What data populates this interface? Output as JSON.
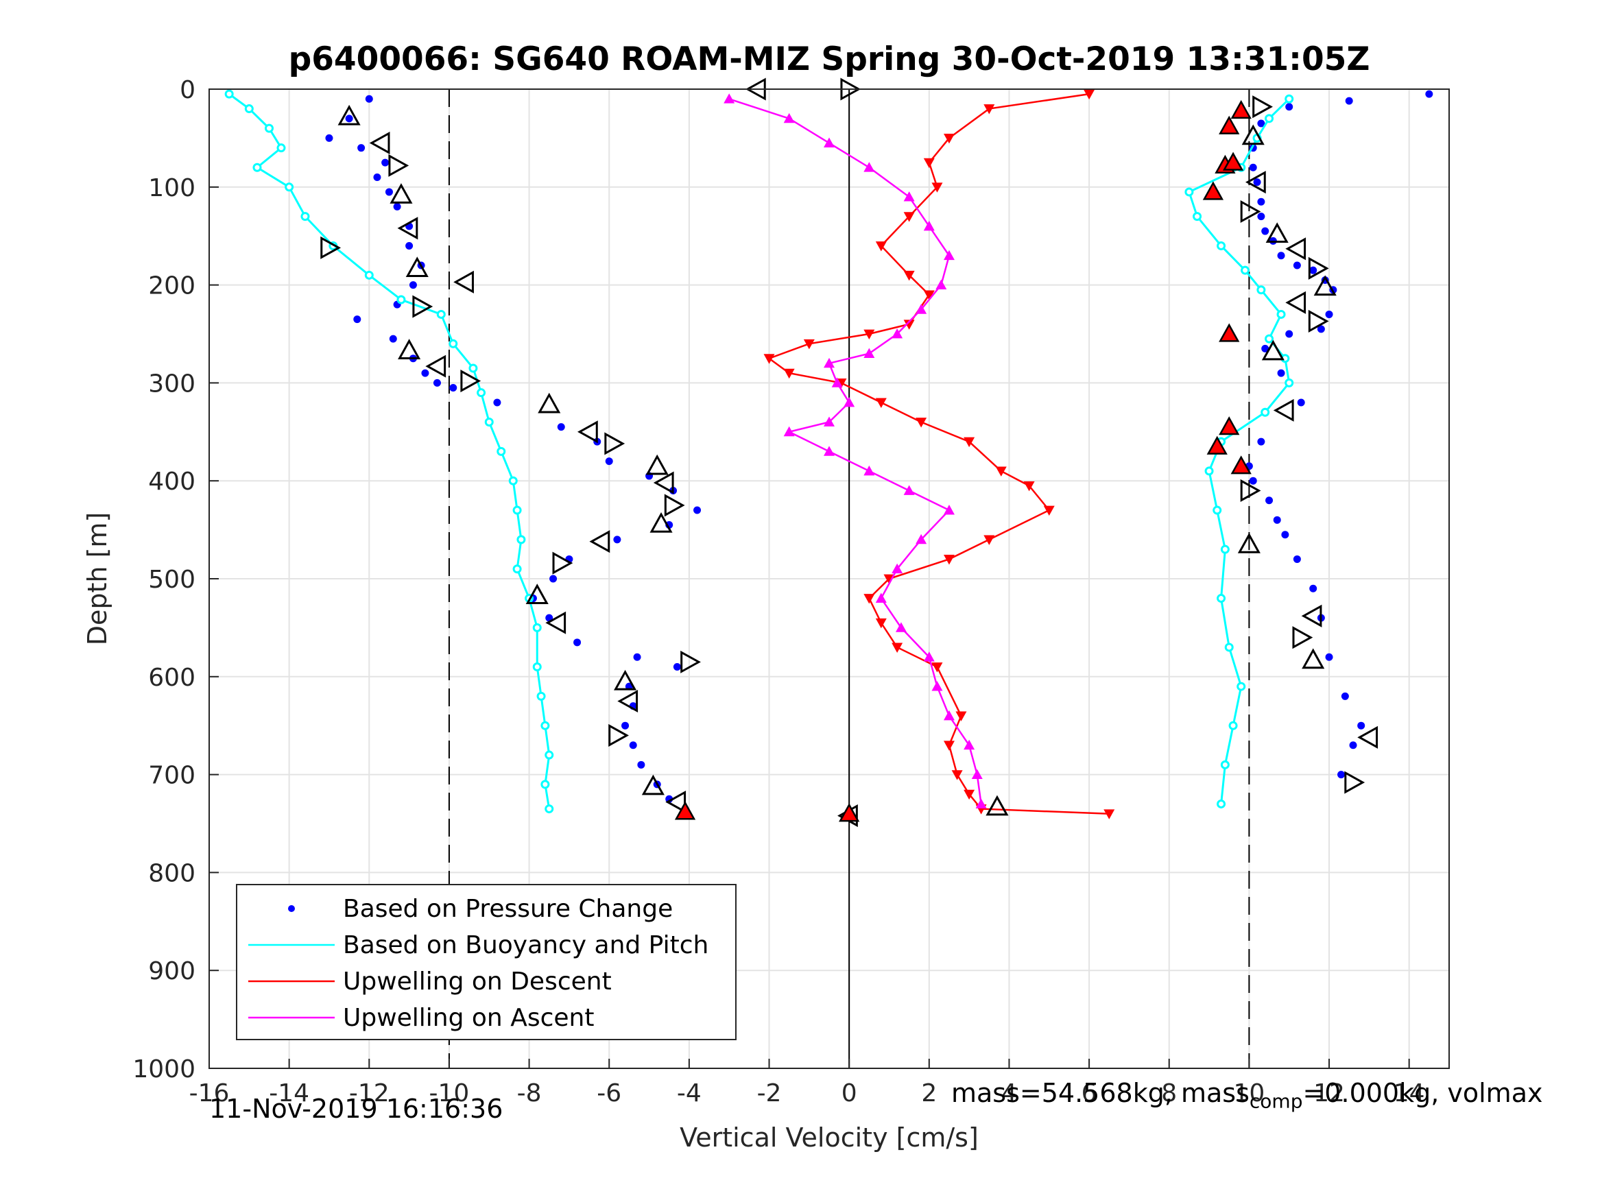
{
  "chart_data": {
    "type": "scatter",
    "title": "p6400066: SG640 ROAM-MIZ Spring 30-Oct-2019 13:31:05Z",
    "xlabel": "Vertical Velocity [cm/s]",
    "ylabel": "Depth [m]",
    "xlim": [
      -16,
      15
    ],
    "ylim": [
      0,
      1000
    ],
    "y_reversed": true,
    "grid": true,
    "x_ticks": [
      -16,
      -14,
      -12,
      -10,
      -8,
      -6,
      -4,
      -2,
      0,
      2,
      4,
      6,
      8,
      10,
      12,
      14
    ],
    "y_ticks": [
      0,
      100,
      200,
      300,
      400,
      500,
      600,
      700,
      800,
      900,
      1000
    ],
    "reference_lines": [
      -10,
      0,
      10
    ],
    "legend_position": "lower-left",
    "colors": {
      "pressure": "#0000ff",
      "buoyancy": "#00ffff",
      "descent": "#ff0000",
      "ascent": "#ff00ff",
      "markers": "#000000"
    },
    "series": [
      {
        "name": "Based on Pressure Change",
        "phase": "descent",
        "style": "dots",
        "x": [
          -12.0,
          -12.5,
          -13.0,
          -12.2,
          -11.6,
          -11.8,
          -11.5,
          -11.3,
          -11.0,
          -11.0,
          -10.7,
          -10.9,
          -11.3,
          -12.3,
          -11.4,
          -10.9,
          -10.6,
          -10.3,
          -9.9,
          -8.8,
          -7.2,
          -6.3,
          -6.0,
          -5.0,
          -4.4,
          -3.8,
          -4.5,
          -5.8,
          -7.0,
          -7.4,
          -7.9,
          -7.5,
          -6.8,
          -5.3,
          -4.3,
          -5.5,
          -5.4,
          -5.6,
          -5.4,
          -5.2,
          -4.8,
          -4.5,
          -4.1,
          0.0
        ],
        "y": [
          10,
          30,
          50,
          60,
          75,
          90,
          105,
          120,
          140,
          160,
          180,
          200,
          220,
          235,
          255,
          275,
          290,
          300,
          305,
          320,
          345,
          360,
          380,
          395,
          410,
          430,
          445,
          460,
          480,
          500,
          520,
          540,
          565,
          580,
          590,
          610,
          630,
          650,
          670,
          690,
          710,
          725,
          735,
          740
        ]
      },
      {
        "name": "Based on Pressure Change",
        "phase": "ascent",
        "style": "dots",
        "x": [
          14.5,
          12.5,
          11.0,
          10.3,
          10.1,
          10.1,
          10.2,
          10.3,
          10.3,
          10.4,
          10.6,
          10.8,
          11.2,
          11.6,
          11.9,
          12.1,
          12.0,
          11.8,
          11.0,
          10.4,
          10.8,
          11.3,
          10.3,
          10.0,
          10.1,
          10.5,
          10.7,
          10.9,
          11.2,
          11.6,
          11.8,
          12.0,
          12.4,
          12.8,
          12.6,
          12.3
        ],
        "y": [
          5,
          12,
          18,
          35,
          60,
          80,
          95,
          115,
          130,
          145,
          155,
          170,
          180,
          185,
          195,
          205,
          230,
          245,
          250,
          265,
          290,
          320,
          360,
          385,
          400,
          420,
          440,
          455,
          480,
          510,
          540,
          580,
          620,
          650,
          670,
          700
        ]
      },
      {
        "name": "Based on Buoyancy and Pitch",
        "phase": "descent",
        "style": "line-circles",
        "x": [
          -15.5,
          -15.0,
          -14.5,
          -14.2,
          -14.8,
          -14.0,
          -13.6,
          -12.9,
          -12.0,
          -11.2,
          -10.2,
          -9.9,
          -9.4,
          -9.2,
          -9.0,
          -8.7,
          -8.4,
          -8.3,
          -8.2,
          -8.3,
          -8.0,
          -7.8,
          -7.8,
          -7.7,
          -7.6,
          -7.5,
          -7.6,
          -7.5
        ],
        "y": [
          5,
          20,
          40,
          60,
          80,
          100,
          130,
          160,
          190,
          215,
          230,
          260,
          285,
          310,
          340,
          370,
          400,
          430,
          460,
          490,
          520,
          550,
          590,
          620,
          650,
          680,
          710,
          735
        ]
      },
      {
        "name": "Based on Buoyancy and Pitch",
        "phase": "ascent",
        "style": "line-circles",
        "x": [
          11.0,
          10.5,
          10.2,
          9.8,
          8.5,
          8.7,
          9.3,
          9.9,
          10.3,
          10.8,
          10.5,
          10.9,
          11.0,
          10.4,
          9.3,
          9.0,
          9.2,
          9.4,
          9.3,
          9.5,
          9.8,
          9.6,
          9.4,
          9.3
        ],
        "y": [
          10,
          30,
          50,
          80,
          105,
          130,
          160,
          185,
          205,
          230,
          255,
          275,
          300,
          330,
          360,
          390,
          430,
          470,
          520,
          570,
          610,
          650,
          690,
          730
        ]
      },
      {
        "name": "Upwelling on Descent",
        "style": "line-triangle-down",
        "x": [
          6.0,
          3.5,
          2.5,
          2.0,
          2.2,
          1.5,
          0.8,
          1.5,
          2.0,
          1.5,
          0.5,
          -1.0,
          -2.0,
          -1.5,
          -0.2,
          0.8,
          1.8,
          3.0,
          3.8,
          4.5,
          5.0,
          3.5,
          2.5,
          1.0,
          0.5,
          0.8,
          1.2,
          2.2,
          2.8,
          2.5,
          2.7,
          3.0,
          3.3,
          6.5
        ],
        "y": [
          5,
          20,
          50,
          75,
          100,
          130,
          160,
          190,
          210,
          240,
          250,
          260,
          275,
          290,
          300,
          320,
          340,
          360,
          390,
          405,
          430,
          460,
          480,
          500,
          520,
          545,
          570,
          590,
          640,
          670,
          700,
          720,
          735,
          740
        ]
      },
      {
        "name": "Upwelling on Ascent",
        "style": "line-triangle-up",
        "x": [
          -3.0,
          -1.5,
          -0.5,
          0.5,
          1.5,
          2.0,
          2.5,
          2.3,
          1.8,
          1.2,
          0.5,
          -0.5,
          -0.3,
          0.0,
          -0.5,
          -1.5,
          -0.5,
          0.5,
          1.5,
          2.5,
          1.8,
          1.2,
          0.8,
          1.3,
          2.0,
          2.2,
          2.5,
          3.0,
          3.2,
          3.3
        ],
        "y": [
          10,
          30,
          55,
          80,
          110,
          140,
          170,
          200,
          225,
          250,
          270,
          280,
          300,
          320,
          340,
          350,
          370,
          390,
          410,
          430,
          460,
          490,
          520,
          550,
          580,
          610,
          640,
          670,
          700,
          730
        ]
      },
      {
        "name": "",
        "style": "open-triangle-markers",
        "points": [
          [
            -2.3,
            0
          ],
          [
            0.0,
            0
          ],
          [
            -12.5,
            28
          ],
          [
            -11.7,
            55
          ],
          [
            -11.3,
            78
          ],
          [
            -11.2,
            108
          ],
          [
            -11.0,
            142
          ],
          [
            -13.0,
            162
          ],
          [
            -10.8,
            183
          ],
          [
            -9.6,
            197
          ],
          [
            -10.7,
            222
          ],
          [
            -11.0,
            267
          ],
          [
            -10.3,
            283
          ],
          [
            -9.5,
            298
          ],
          [
            -7.5,
            322
          ],
          [
            -6.5,
            350
          ],
          [
            -5.9,
            362
          ],
          [
            -4.8,
            385
          ],
          [
            -4.6,
            402
          ],
          [
            -4.4,
            425
          ],
          [
            -4.7,
            444
          ],
          [
            -6.2,
            462
          ],
          [
            -7.2,
            484
          ],
          [
            -7.8,
            517
          ],
          [
            -7.3,
            545
          ],
          [
            -4.0,
            585
          ],
          [
            -5.6,
            605
          ],
          [
            -5.5,
            625
          ],
          [
            -5.8,
            660
          ],
          [
            -4.9,
            712
          ],
          [
            -4.3,
            728
          ],
          [
            10.3,
            18
          ],
          [
            10.1,
            48
          ],
          [
            10.2,
            95
          ],
          [
            10.0,
            125
          ],
          [
            10.7,
            148
          ],
          [
            11.2,
            163
          ],
          [
            11.7,
            183
          ],
          [
            11.9,
            202
          ],
          [
            11.2,
            218
          ],
          [
            11.7,
            237
          ],
          [
            10.6,
            268
          ],
          [
            10.9,
            328
          ],
          [
            10.0,
            410
          ],
          [
            10.0,
            465
          ],
          [
            11.6,
            538
          ],
          [
            11.3,
            560
          ],
          [
            11.6,
            583
          ],
          [
            13.0,
            662
          ],
          [
            12.6,
            708
          ],
          [
            3.7,
            733
          ],
          [
            0.0,
            742
          ]
        ]
      },
      {
        "name": "",
        "style": "filled-red-markers",
        "points": [
          [
            9.8,
            22
          ],
          [
            9.5,
            38
          ],
          [
            9.4,
            78
          ],
          [
            9.6,
            75
          ],
          [
            9.1,
            105
          ],
          [
            9.5,
            250
          ],
          [
            9.5,
            345
          ],
          [
            9.2,
            365
          ],
          [
            9.8,
            385
          ],
          [
            -4.1,
            738
          ],
          [
            0.0,
            740
          ]
        ]
      }
    ]
  },
  "footer": {
    "timestamp": "11-Nov-2019 16:16:36",
    "mass_prefix": "mass=54.568kg, mass",
    "mass_sub": "comp",
    "mass_suffix": "=0.000kg, volmax"
  }
}
